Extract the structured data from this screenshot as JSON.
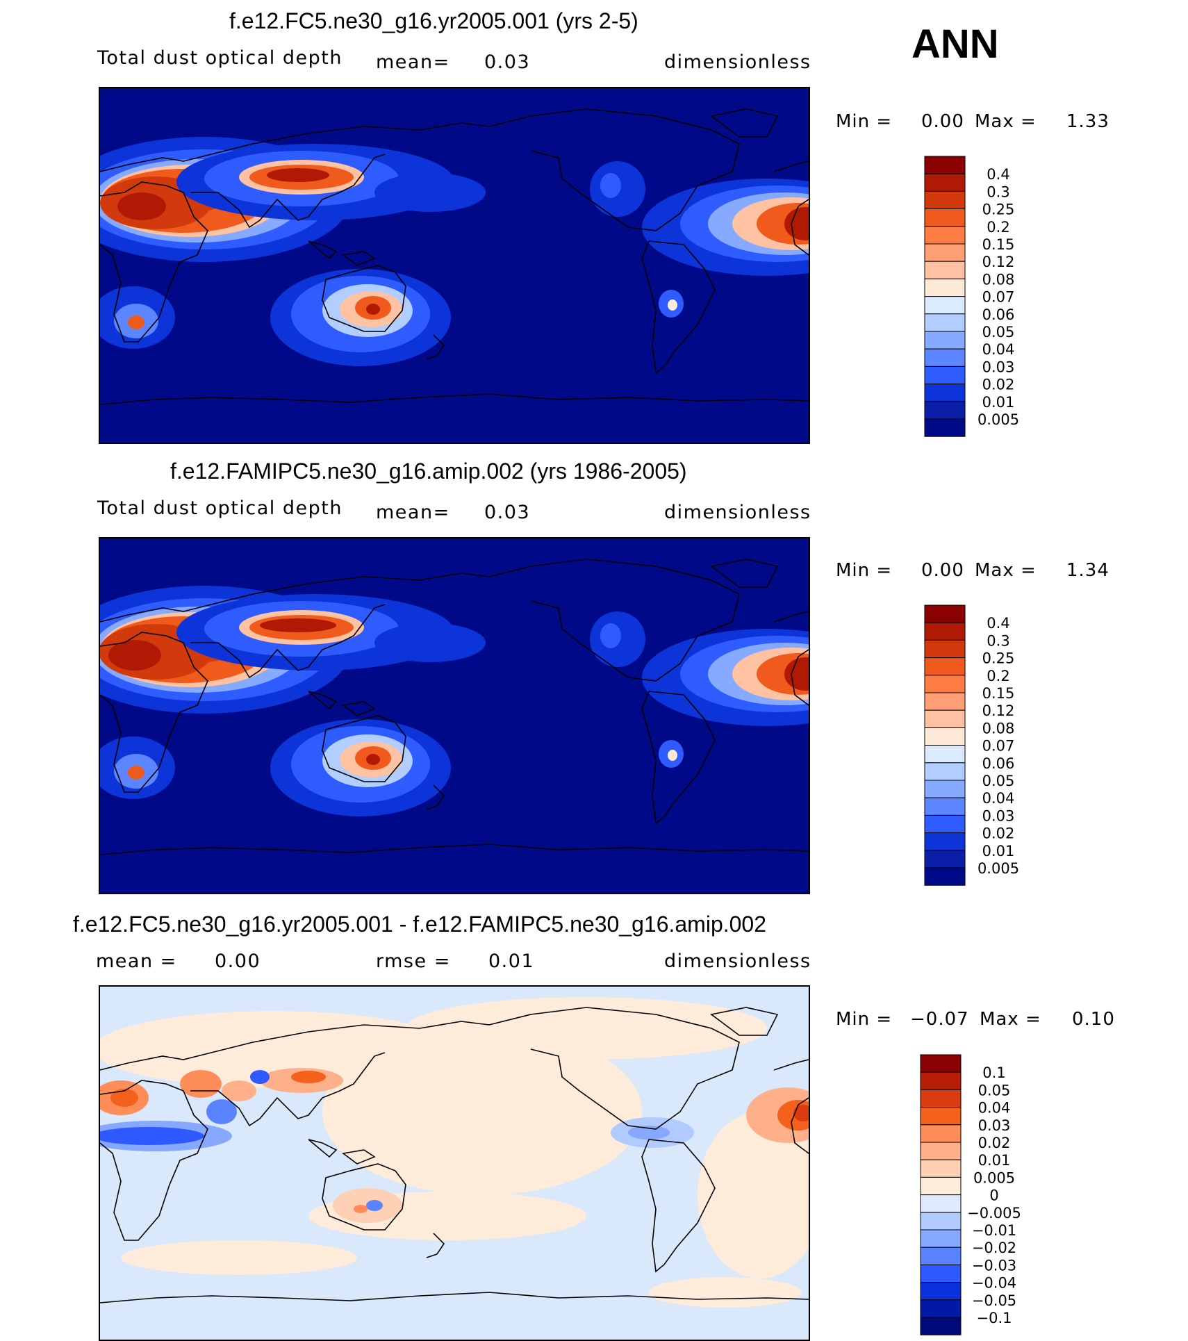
{
  "season": "ANN",
  "panels": [
    {
      "title": "f.e12.FC5.ne30_g16.yr2005.001 (yrs 2-5)",
      "left_label": "Total dust optical depth",
      "mid_label": "mean=",
      "mid_value": "0.03",
      "units": "dimensionless",
      "min_label": "Min =",
      "min_value": "0.00",
      "max_label": "Max =",
      "max_value": "1.33",
      "palette": "sequential",
      "levels": [
        "0.4",
        "0.3",
        "0.25",
        "0.2",
        "0.15",
        "0.12",
        "0.08",
        "0.07",
        "0.06",
        "0.05",
        "0.04",
        "0.03",
        "0.02",
        "0.01",
        "0.005"
      ]
    },
    {
      "title": "f.e12.FAMIPC5.ne30_g16.amip.002 (yrs 1986-2005)",
      "left_label": "Total dust optical depth",
      "mid_label": "mean=",
      "mid_value": "0.03",
      "units": "dimensionless",
      "min_label": "Min =",
      "min_value": "0.00",
      "max_label": "Max =",
      "max_value": "1.34",
      "palette": "sequential",
      "levels": [
        "0.4",
        "0.3",
        "0.25",
        "0.2",
        "0.15",
        "0.12",
        "0.08",
        "0.07",
        "0.06",
        "0.05",
        "0.04",
        "0.03",
        "0.02",
        "0.01",
        "0.005"
      ]
    },
    {
      "title": "f.e12.FC5.ne30_g16.yr2005.001 - f.e12.FAMIPC5.ne30_g16.amip.002",
      "left_label": "mean =",
      "left_value": "0.00",
      "mid_label": "rmse =",
      "mid_value": "0.01",
      "units": "dimensionless",
      "min_label": "Min =",
      "min_value": "−0.07",
      "max_label": "Max =",
      "max_value": "0.10",
      "palette": "diverging",
      "levels": [
        "0.1",
        "0.05",
        "0.04",
        "0.03",
        "0.02",
        "0.01",
        "0.005",
        "0",
        "−0.005",
        "−0.01",
        "−0.02",
        "−0.03",
        "−0.04",
        "−0.05",
        "−0.1"
      ]
    }
  ],
  "colors": {
    "sequential": [
      "#8b0000",
      "#b01a05",
      "#d23a0e",
      "#f05a1c",
      "#ff7d45",
      "#ff9f75",
      "#ffc2a2",
      "#ffe9d7",
      "#dceaff",
      "#b2cdff",
      "#85aaff",
      "#5c86ff",
      "#2f5cff",
      "#0d34d8",
      "#0a1ea8",
      "#000a88"
    ],
    "diverging": [
      "#8b0000",
      "#b81d05",
      "#dc3a10",
      "#f4611d",
      "#ff8d5a",
      "#ffb08a",
      "#ffd0b4",
      "#ffebd9",
      "#ddeaff",
      "#b2cbff",
      "#86a9ff",
      "#5a84ff",
      "#2e59ff",
      "#0a31db",
      "#0219a8",
      "#000a78"
    ],
    "ocean_sequential": "#000a88",
    "ocean_diverging": "#d9e8fb",
    "coast": "#000000"
  },
  "chart_data": [
    {
      "type": "heatmap",
      "title": "f.e12.FC5.ne30_g16.yr2005.001 (yrs 2-5)",
      "variable": "Total dust optical depth",
      "units": "dimensionless",
      "mean": 0.03,
      "min": 0.0,
      "max": 1.33,
      "contour_levels": [
        0.005,
        0.01,
        0.02,
        0.03,
        0.04,
        0.05,
        0.06,
        0.07,
        0.08,
        0.12,
        0.15,
        0.2,
        0.25,
        0.3,
        0.4
      ],
      "projection": "cylindrical equidistant, centered on Pacific"
    },
    {
      "type": "heatmap",
      "title": "f.e12.FAMIPC5.ne30_g16.amip.002 (yrs 1986-2005)",
      "variable": "Total dust optical depth",
      "units": "dimensionless",
      "mean": 0.03,
      "min": 0.0,
      "max": 1.34,
      "contour_levels": [
        0.005,
        0.01,
        0.02,
        0.03,
        0.04,
        0.05,
        0.06,
        0.07,
        0.08,
        0.12,
        0.15,
        0.2,
        0.25,
        0.3,
        0.4
      ],
      "projection": "cylindrical equidistant, centered on Pacific"
    },
    {
      "type": "heatmap",
      "title": "f.e12.FC5.ne30_g16.yr2005.001 - f.e12.FAMIPC5.ne30_g16.amip.002",
      "units": "dimensionless",
      "mean": 0.0,
      "rmse": 0.01,
      "min": -0.07,
      "max": 0.1,
      "contour_levels": [
        -0.1,
        -0.05,
        -0.04,
        -0.03,
        -0.02,
        -0.01,
        -0.005,
        0,
        0.005,
        0.01,
        0.02,
        0.03,
        0.04,
        0.05,
        0.1
      ],
      "projection": "cylindrical equidistant, centered on Pacific"
    }
  ]
}
